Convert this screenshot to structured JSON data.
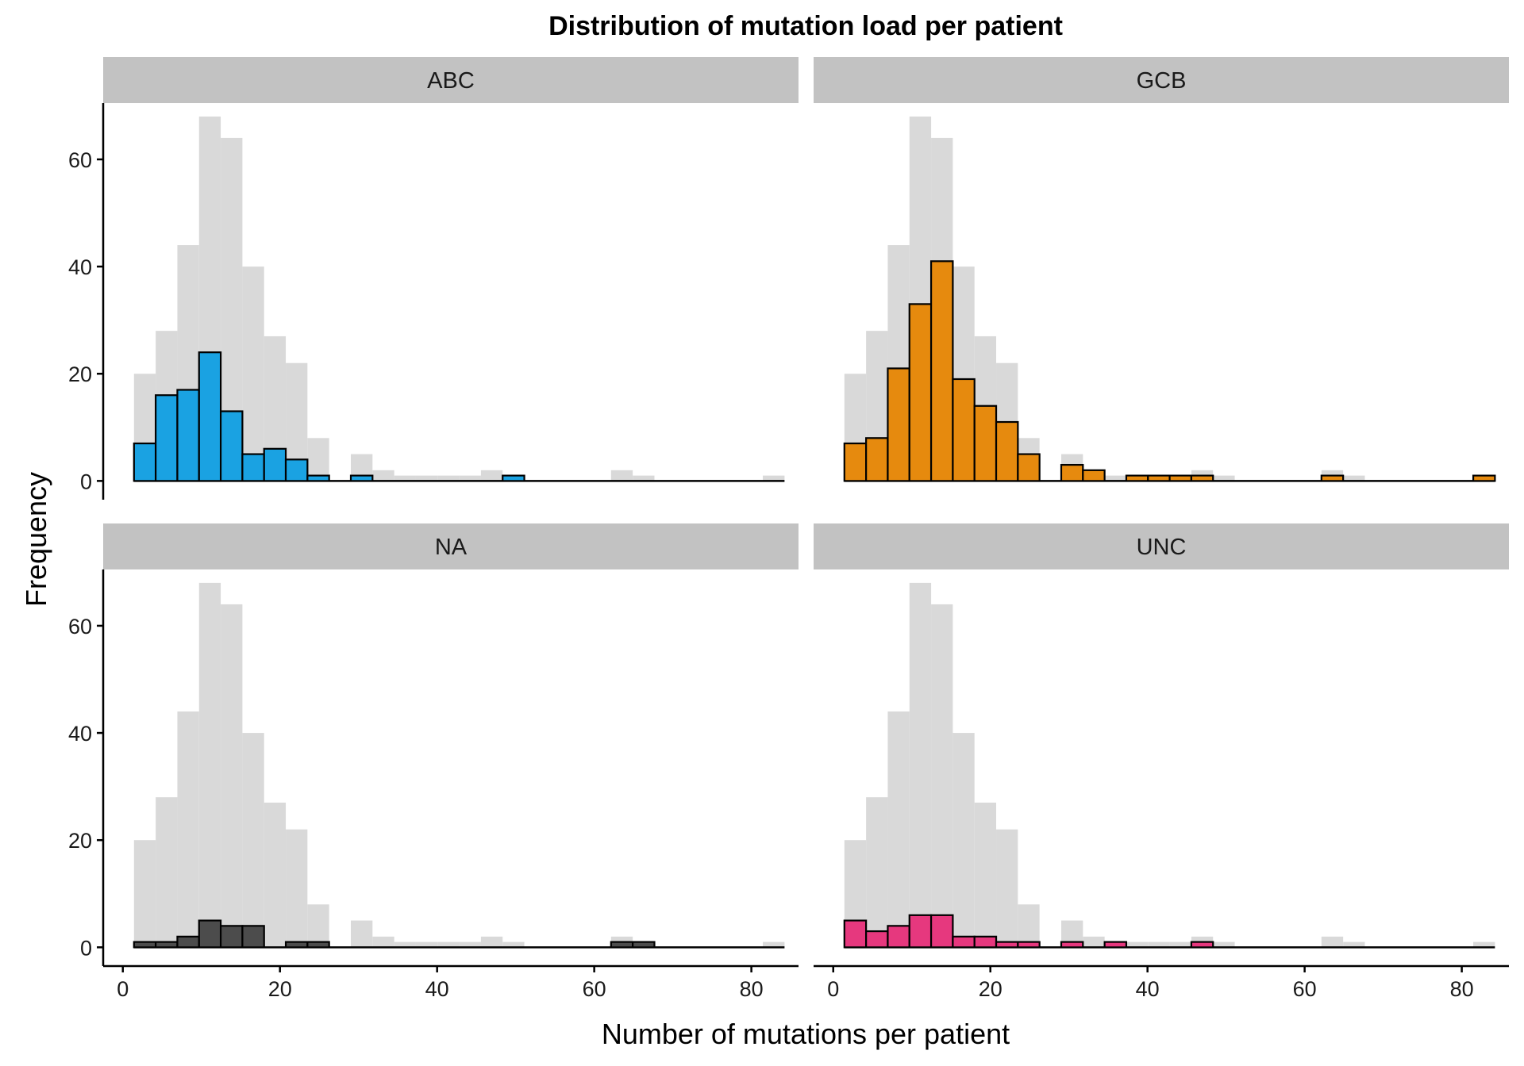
{
  "chart_data": {
    "type": "bar",
    "title": "Distribution of mutation load per patient",
    "xlabel": "Number of mutations per patient",
    "ylabel": "Frequency",
    "xlim": [
      -2.5,
      86
    ],
    "ylim": [
      -3.5,
      70.5
    ],
    "x_ticks": [
      0,
      20,
      40,
      60,
      80
    ],
    "y_ticks": [
      0,
      20,
      40,
      60
    ],
    "binwidth": 2.76,
    "x": [
      2.8,
      5.56,
      8.32,
      11.08,
      13.84,
      16.6,
      19.36,
      22.12,
      24.88,
      27.64,
      30.4,
      33.16,
      35.92,
      38.68,
      41.44,
      44.2,
      46.96,
      49.72,
      52.48,
      55.24,
      58.0,
      60.76,
      63.52,
      66.28,
      69.04,
      71.8,
      74.56,
      77.32,
      80.08,
      82.84
    ],
    "background": {
      "values": [
        20,
        28,
        44,
        68,
        64,
        40,
        27,
        22,
        8,
        0,
        5,
        2,
        1,
        1,
        1,
        1,
        2,
        1,
        0,
        0,
        0,
        0,
        2,
        1,
        0,
        0,
        0,
        0,
        0,
        1
      ]
    },
    "grid": false,
    "legend": "none",
    "panels": [
      {
        "name": "ABC",
        "color": "#1aa2e2",
        "values": [
          7,
          16,
          17,
          24,
          13,
          5,
          6,
          4,
          1,
          0,
          1,
          0,
          0,
          0,
          0,
          0,
          0,
          1,
          0,
          0,
          0,
          0,
          0,
          0,
          0,
          0,
          0,
          0,
          0,
          0
        ]
      },
      {
        "name": "GCB",
        "color": "#e68a0e",
        "values": [
          7,
          8,
          21,
          33,
          41,
          19,
          14,
          11,
          5,
          0,
          3,
          2,
          0,
          1,
          1,
          1,
          1,
          0,
          0,
          0,
          0,
          0,
          1,
          0,
          0,
          0,
          0,
          0,
          0,
          1
        ]
      },
      {
        "name": "NA",
        "color": "#4c4c4c",
        "values": [
          1,
          1,
          2,
          5,
          4,
          4,
          0,
          1,
          1,
          0,
          0,
          0,
          0,
          0,
          0,
          0,
          0,
          0,
          0,
          0,
          0,
          0,
          1,
          1,
          0,
          0,
          0,
          0,
          0,
          0
        ]
      },
      {
        "name": "UNC",
        "color": "#e6387e",
        "values": [
          5,
          3,
          4,
          6,
          6,
          2,
          2,
          1,
          1,
          0,
          1,
          0,
          1,
          0,
          0,
          0,
          1,
          0,
          0,
          0,
          0,
          0,
          0,
          0,
          0,
          0,
          0,
          0,
          0,
          0
        ]
      }
    ]
  },
  "colors": {
    "background_bars": "#d9d9d9",
    "strip_background": "#c2c2c2",
    "outline": "#000000"
  }
}
